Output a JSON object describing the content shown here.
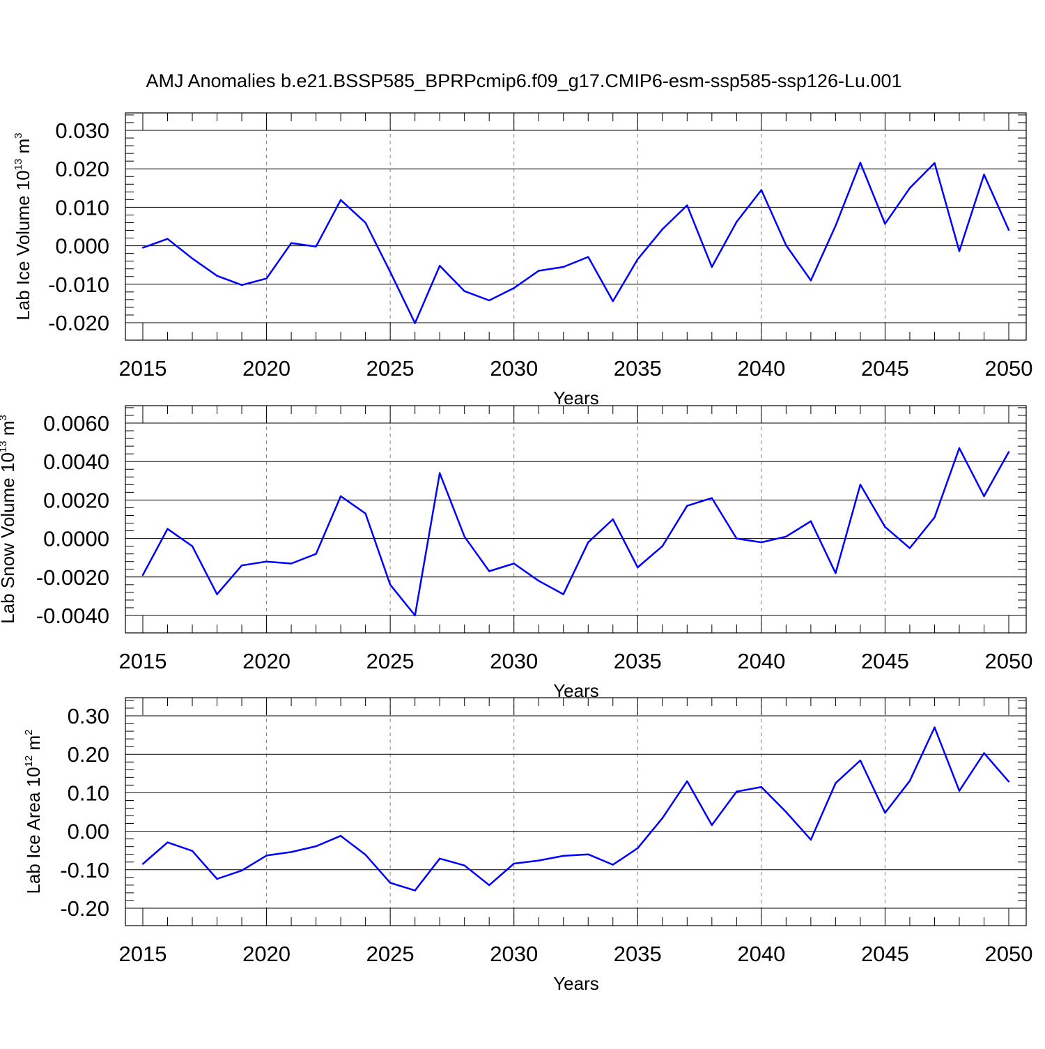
{
  "figure": {
    "title": "AMJ Anomalies b.e21.BSSP585_BPRPcmip6.f09_g17.CMIP6-esm-ssp585-ssp126-Lu.001"
  },
  "colors": {
    "series_line": "#0000ff",
    "axis": "#000000",
    "grid": "#808080",
    "background": "#ffffff"
  },
  "chart_data": [
    {
      "type": "line",
      "title": "AMJ Anomalies b.e21.BSSP585_BPRPcmip6.f09_g17.CMIP6-esm-ssp585-ssp126-Lu.001",
      "xlabel": "Years",
      "ylabel": "Lab Ice Volume 10",
      "ylabel_exponent": "13",
      "ylabel_unit": "m",
      "ylabel_unit_exponent": "3",
      "xlim": [
        2015,
        2050
      ],
      "ylim": [
        -0.02,
        0.03
      ],
      "xticks": [
        "2015",
        "2020",
        "2025",
        "2030",
        "2035",
        "2040",
        "2045",
        "2050"
      ],
      "yticks": [
        "-0.020",
        "-0.010",
        "0.000",
        "0.010",
        "0.020",
        "0.030"
      ],
      "grid": "vertical dashed at major x ticks",
      "x": [
        2015,
        2016,
        2017,
        2018,
        2019,
        2020,
        2021,
        2022,
        2023,
        2024,
        2025,
        2026,
        2027,
        2028,
        2029,
        2030,
        2031,
        2032,
        2033,
        2034,
        2035,
        2036,
        2037,
        2038,
        2039,
        2040,
        2041,
        2042,
        2043,
        2044,
        2045,
        2046,
        2047,
        2048,
        2049,
        2050
      ],
      "series": [
        {
          "values": [
            -0.0005,
            0.0018,
            -0.0033,
            -0.0078,
            -0.0102,
            -0.0085,
            0.0007,
            -0.0002,
            0.0119,
            0.006,
            -0.0068,
            -0.0201,
            -0.0052,
            -0.0118,
            -0.0142,
            -0.011,
            -0.0065,
            -0.0055,
            -0.0029,
            -0.0144,
            -0.0035,
            0.0043,
            0.0105,
            -0.0055,
            0.0062,
            0.0145,
            0.0001,
            -0.009,
            0.0052,
            0.0216,
            0.0057,
            0.015,
            0.0215,
            -0.0014,
            0.0185,
            0.0041
          ]
        }
      ]
    },
    {
      "type": "line",
      "xlabel": "Years",
      "ylabel": "Lab Snow Volume 10",
      "ylabel_exponent": "13",
      "ylabel_unit": "m",
      "ylabel_unit_exponent": "3",
      "xlim": [
        2015,
        2050
      ],
      "ylim": [
        -0.004,
        0.006
      ],
      "xticks": [
        "2015",
        "2020",
        "2025",
        "2030",
        "2035",
        "2040",
        "2045",
        "2050"
      ],
      "yticks": [
        "-0.0040",
        "-0.0020",
        "0.0000",
        "0.0020",
        "0.0040",
        "0.0060"
      ],
      "grid": "vertical dashed at major x ticks",
      "x": [
        2015,
        2016,
        2017,
        2018,
        2019,
        2020,
        2021,
        2022,
        2023,
        2024,
        2025,
        2026,
        2027,
        2028,
        2029,
        2030,
        2031,
        2032,
        2033,
        2034,
        2035,
        2036,
        2037,
        2038,
        2039,
        2040,
        2041,
        2042,
        2043,
        2044,
        2045,
        2046,
        2047,
        2048,
        2049,
        2050
      ],
      "series": [
        {
          "values": [
            -0.0019,
            0.0005,
            -0.0004,
            -0.0029,
            -0.0014,
            -0.0012,
            -0.0013,
            -0.0008,
            0.0022,
            0.0013,
            -0.0024,
            -0.004,
            0.0034,
            0.0001,
            -0.0017,
            -0.0013,
            -0.0022,
            -0.0029,
            -0.0002,
            0.001,
            -0.0015,
            -0.0004,
            0.0017,
            0.0021,
            0.0,
            -0.0002,
            0.0001,
            0.0009,
            -0.0018,
            0.0028,
            0.0006,
            -0.0005,
            0.0011,
            0.0047,
            0.0022,
            0.0045
          ]
        }
      ]
    },
    {
      "type": "line",
      "xlabel": "Years",
      "ylabel": "Lab Ice Area 10",
      "ylabel_exponent": "12",
      "ylabel_unit": "m",
      "ylabel_unit_exponent": "2",
      "xlim": [
        2015,
        2050
      ],
      "ylim": [
        -0.2,
        0.3
      ],
      "xticks": [
        "2015",
        "2020",
        "2025",
        "2030",
        "2035",
        "2040",
        "2045",
        "2050"
      ],
      "yticks": [
        "-0.20",
        "-0.10",
        "0.00",
        "0.10",
        "0.20",
        "0.30"
      ],
      "grid": "vertical dashed at major x ticks",
      "x": [
        2015,
        2016,
        2017,
        2018,
        2019,
        2020,
        2021,
        2022,
        2023,
        2024,
        2025,
        2026,
        2027,
        2028,
        2029,
        2030,
        2031,
        2032,
        2033,
        2034,
        2035,
        2036,
        2037,
        2038,
        2039,
        2040,
        2041,
        2042,
        2043,
        2044,
        2045,
        2046,
        2047,
        2048,
        2049,
        2050
      ],
      "series": [
        {
          "values": [
            -0.085,
            -0.029,
            -0.051,
            -0.124,
            -0.102,
            -0.063,
            -0.054,
            -0.039,
            -0.012,
            -0.061,
            -0.134,
            -0.154,
            -0.071,
            -0.089,
            -0.14,
            -0.084,
            -0.076,
            -0.064,
            -0.06,
            -0.087,
            -0.044,
            0.034,
            0.13,
            0.016,
            0.103,
            0.115,
            0.05,
            -0.022,
            0.125,
            0.184,
            0.048,
            0.131,
            0.27,
            0.105,
            0.203,
            0.129
          ]
        }
      ]
    }
  ]
}
